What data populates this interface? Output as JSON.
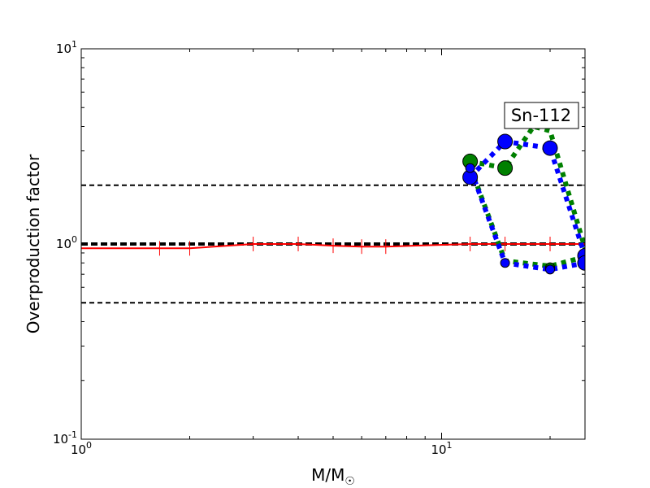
{
  "chart_data": {
    "type": "line",
    "xscale": "log",
    "yscale": "log",
    "xlim": [
      1,
      25
    ],
    "ylim": [
      0.1,
      10
    ],
    "xlabel": "M/M",
    "xlabel_subscript": "☉",
    "ylabel": "Overproduction factor",
    "x_ticks": [
      {
        "value": 1,
        "base": "10",
        "exp": "0"
      },
      {
        "value": 10,
        "base": "10",
        "exp": "1"
      }
    ],
    "y_ticks": [
      {
        "value": 0.1,
        "base": "10",
        "exp": "-1"
      },
      {
        "value": 1,
        "base": "10",
        "exp": "0"
      },
      {
        "value": 10,
        "base": "10",
        "exp": "1"
      }
    ],
    "reference_lines": [
      {
        "y": 2.0,
        "style": "dashed",
        "color": "#000000",
        "width": 2
      },
      {
        "y": 1.0,
        "style": "dashed",
        "color": "#000000",
        "width": 4
      },
      {
        "y": 0.5,
        "style": "dashed",
        "color": "#000000",
        "width": 2
      }
    ],
    "series": [
      {
        "style": "solid",
        "color": "#ff0000",
        "marker": "tick",
        "x": [
          1,
          1.65,
          2,
          3,
          4,
          5,
          6,
          7,
          12,
          15,
          20,
          25
        ],
        "y": [
          0.95,
          0.95,
          0.95,
          1.0,
          1.0,
          0.98,
          0.97,
          0.97,
          1.0,
          1.0,
          1.0,
          1.0
        ]
      },
      {
        "style": "dotted",
        "color": "#008000",
        "marker": "circle",
        "x": [
          12,
          15,
          18,
          20,
          25,
          25,
          20,
          15,
          12
        ],
        "y": [
          2.65,
          2.45,
          4.0,
          3.8,
          0.95,
          0.86,
          0.77,
          0.82,
          2.5
        ]
      },
      {
        "style": "dotted",
        "color": "#0000ff",
        "marker": "circle",
        "x": [
          12,
          15,
          20,
          25,
          25,
          20,
          15,
          12
        ],
        "y": [
          2.2,
          3.35,
          3.1,
          0.87,
          0.8,
          0.74,
          0.8,
          2.45
        ]
      }
    ],
    "markers": [
      {
        "series": 1,
        "x": 12,
        "y": 2.65,
        "size": "large"
      },
      {
        "series": 1,
        "x": 15,
        "y": 2.45,
        "size": "large"
      },
      {
        "series": 1,
        "x": 20,
        "y": 0.76,
        "size": "small"
      },
      {
        "series": 2,
        "x": 12,
        "y": 2.2,
        "size": "large"
      },
      {
        "series": 2,
        "x": 15,
        "y": 3.35,
        "size": "large"
      },
      {
        "series": 2,
        "x": 20,
        "y": 3.1,
        "size": "large"
      },
      {
        "series": 2,
        "x": 25,
        "y": 0.87,
        "size": "large"
      },
      {
        "series": 2,
        "x": 25,
        "y": 0.8,
        "size": "large"
      },
      {
        "series": 2,
        "x": 20,
        "y": 0.74,
        "size": "small"
      },
      {
        "series": 2,
        "x": 15,
        "y": 0.8,
        "size": "small"
      },
      {
        "series": 2,
        "x": 12,
        "y": 2.45,
        "size": "small"
      }
    ],
    "annotation": {
      "text": "Sn-112"
    }
  }
}
